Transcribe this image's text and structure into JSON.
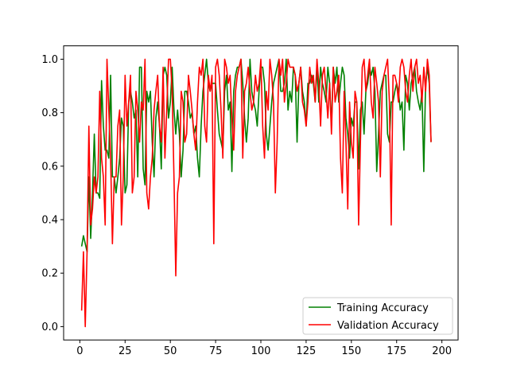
{
  "chart_data": {
    "type": "line",
    "title": "",
    "xlabel": "",
    "ylabel": "",
    "xlim": [
      -8.95,
      208.95
    ],
    "ylim": [
      -0.05,
      1.05
    ],
    "xticks": [
      0,
      25,
      50,
      75,
      100,
      125,
      150,
      175,
      200
    ],
    "yticks": [
      0.0,
      0.2,
      0.4,
      0.6,
      0.8,
      1.0
    ],
    "xtick_labels": [
      "0",
      "25",
      "50",
      "75",
      "100",
      "125",
      "150",
      "175",
      "200"
    ],
    "ytick_labels": [
      "0.0",
      "0.2",
      "0.4",
      "0.6",
      "0.8",
      "1.0"
    ],
    "grid": false,
    "legend_position": "lower-right",
    "series": [
      {
        "name": "Training Accuracy",
        "color": "#008000",
        "values": [
          0.3,
          0.34,
          0.31,
          0.28,
          0.56,
          0.33,
          0.5,
          0.72,
          0.5,
          0.5,
          0.48,
          0.92,
          0.75,
          0.66,
          0.66,
          0.63,
          0.94,
          0.56,
          0.56,
          0.5,
          0.56,
          0.63,
          0.78,
          0.75,
          0.5,
          0.53,
          0.84,
          0.88,
          0.84,
          0.78,
          0.81,
          0.56,
          0.97,
          0.97,
          0.59,
          0.53,
          0.88,
          0.84,
          0.88,
          0.69,
          0.56,
          0.78,
          0.84,
          0.75,
          0.59,
          0.94,
          0.97,
          0.94,
          0.78,
          0.84,
          0.97,
          0.81,
          0.72,
          0.81,
          0.72,
          0.56,
          0.66,
          0.88,
          0.88,
          0.84,
          0.78,
          0.8,
          0.72,
          0.75,
          0.63,
          0.56,
          0.75,
          0.88,
          0.94,
          1.0,
          0.91,
          0.88,
          0.91,
          0.91,
          0.91,
          0.81,
          0.72,
          0.69,
          0.66,
          0.88,
          0.94,
          0.81,
          0.84,
          0.58,
          0.88,
          0.94,
          0.97,
          0.97,
          1.0,
          0.91,
          0.78,
          0.69,
          0.78,
          1.0,
          0.88,
          0.84,
          0.81,
          0.75,
          0.88,
          0.97,
          0.97,
          0.91,
          0.72,
          0.66,
          0.75,
          0.84,
          0.91,
          0.94,
          0.97,
          1.0,
          0.88,
          0.88,
          0.91,
          1.0,
          0.81,
          0.88,
          0.84,
          0.97,
          0.94,
          0.69,
          0.91,
          0.97,
          0.88,
          0.84,
          0.75,
          0.91,
          0.91,
          0.94,
          0.91,
          0.84,
          0.97,
          0.84,
          0.97,
          0.91,
          0.88,
          0.84,
          0.97,
          0.91,
          0.75,
          0.97,
          0.91,
          0.97,
          0.84,
          0.91,
          0.97,
          0.94,
          0.78,
          0.72,
          0.63,
          0.78,
          0.75,
          0.84,
          0.84,
          0.59,
          0.81,
          0.84,
          0.72,
          0.88,
          0.91,
          0.97,
          0.94,
          0.97,
          0.88,
          0.58,
          0.72,
          0.88,
          0.91,
          0.94,
          0.94,
          0.72,
          0.69,
          0.84,
          0.84,
          0.88,
          0.91,
          0.88,
          0.81,
          0.84,
          0.66,
          0.94,
          0.91,
          0.81,
          0.91,
          0.94,
          0.97,
          0.88,
          0.84,
          0.81,
          0.88,
          0.58,
          0.91,
          0.97,
          0.91,
          0.69
        ],
        "x_start": 1
      },
      {
        "name": "Validation Accuracy",
        "color": "#ff0000",
        "values": [
          0.06,
          0.28,
          0.0,
          0.28,
          0.75,
          0.38,
          0.44,
          0.56,
          0.5,
          0.56,
          0.88,
          0.63,
          0.56,
          0.38,
          1.0,
          0.81,
          0.63,
          0.31,
          0.56,
          0.56,
          0.75,
          0.81,
          0.38,
          0.56,
          0.94,
          0.75,
          0.84,
          0.94,
          0.5,
          0.56,
          0.88,
          0.81,
          0.69,
          0.84,
          0.81,
          1.0,
          0.5,
          0.44,
          0.56,
          0.63,
          0.81,
          0.88,
          0.94,
          0.75,
          0.69,
          0.97,
          0.63,
          0.81,
          1.0,
          1.0,
          0.88,
          0.56,
          0.19,
          0.5,
          0.56,
          0.88,
          0.84,
          0.69,
          0.72,
          0.94,
          0.88,
          0.81,
          0.72,
          0.66,
          0.84,
          0.97,
          0.94,
          1.0,
          0.75,
          0.69,
          0.94,
          0.88,
          0.94,
          0.31,
          0.97,
          1.0,
          0.94,
          0.81,
          0.63,
          1.0,
          0.97,
          0.91,
          0.94,
          0.78,
          0.66,
          0.88,
          0.94,
          0.97,
          1.0,
          0.63,
          0.88,
          0.91,
          0.97,
          0.88,
          0.81,
          0.84,
          0.94,
          0.88,
          0.91,
          1.0,
          0.75,
          0.63,
          0.88,
          0.81,
          1.0,
          0.94,
          0.84,
          0.5,
          0.69,
          1.0,
          0.94,
          1.0,
          0.84,
          0.91,
          1.0,
          0.97,
          0.97,
          0.97,
          0.94,
          0.88,
          0.91,
          0.97,
          0.84,
          0.81,
          0.75,
          0.84,
          0.97,
          0.91,
          0.94,
          0.84,
          1.0,
          0.91,
          0.75,
          0.94,
          0.97,
          0.88,
          0.78,
          0.91,
          0.72,
          0.97,
          0.84,
          0.88,
          0.94,
          0.63,
          0.5,
          0.88,
          0.69,
          0.44,
          0.84,
          0.69,
          0.63,
          0.88,
          0.84,
          0.38,
          0.69,
          0.97,
          1.0,
          0.88,
          0.94,
          1.0,
          0.84,
          0.78,
          0.97,
          0.91,
          0.84,
          0.56,
          0.88,
          0.94,
          0.97,
          1.0,
          0.84,
          0.38,
          0.94,
          0.94,
          0.91,
          0.84,
          0.97,
          1.0,
          0.97,
          0.88,
          0.84,
          0.94,
          1.0,
          0.88,
          0.97,
          1.0,
          0.91,
          0.94,
          0.84,
          0.97,
          0.88,
          1.0,
          0.94,
          0.69
        ],
        "x_start": 1
      }
    ]
  }
}
